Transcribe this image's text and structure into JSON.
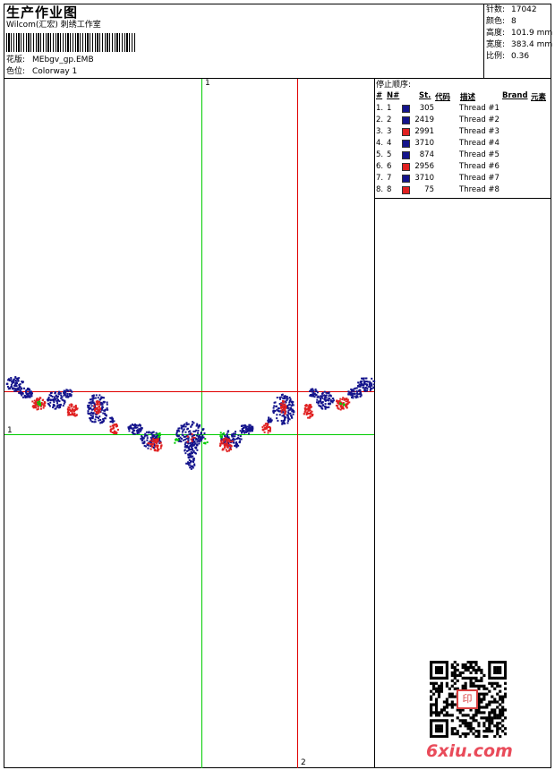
{
  "header": {
    "title": "生产作业图",
    "studio": "Wilcom(汇宏) 刺绣工作室",
    "design_label": "花版:",
    "design_value": "MEbgv_gp.EMB",
    "colorway_label": "色位:",
    "colorway_value": "Colorway 1"
  },
  "stats": [
    {
      "label": "针数:",
      "value": "17042"
    },
    {
      "label": "颜色:",
      "value": "8"
    },
    {
      "label": "高度:",
      "value": "101.9 mm"
    },
    {
      "label": "宽度:",
      "value": "383.4 mm"
    },
    {
      "label": "比例:",
      "value": "0.36"
    }
  ],
  "stop_sequence": {
    "title": "停止顺序:",
    "columns": {
      "num": "#",
      "n": "N#",
      "st": "St.",
      "code": "代码",
      "desc": "描述",
      "brand": "Brand",
      "element": "元素"
    },
    "rows": [
      {
        "num": "1.",
        "n": "1",
        "code": "305",
        "color": "#14148c",
        "desc": "Thread #1"
      },
      {
        "num": "2.",
        "n": "2",
        "code": "2419",
        "color": "#14148c",
        "desc": "Thread #2"
      },
      {
        "num": "3.",
        "n": "3",
        "code": "2991",
        "color": "#e02020",
        "desc": "Thread #3"
      },
      {
        "num": "4.",
        "n": "4",
        "code": "3710",
        "color": "#14148c",
        "desc": "Thread #4"
      },
      {
        "num": "5.",
        "n": "5",
        "code": "874",
        "color": "#14148c",
        "desc": "Thread #5"
      },
      {
        "num": "6.",
        "n": "6",
        "code": "2956",
        "color": "#e02020",
        "desc": "Thread #6"
      },
      {
        "num": "7.",
        "n": "7",
        "code": "3710",
        "color": "#14148c",
        "desc": "Thread #7"
      },
      {
        "num": "8.",
        "n": "8",
        "code": "75",
        "color": "#e02020",
        "desc": "Thread #8"
      }
    ]
  },
  "guides": {
    "green_h": "1",
    "green_v": "1",
    "red_v": "2"
  },
  "colors": {
    "blue": "#14148c",
    "red": "#e02020",
    "green": "#00cc00",
    "redline": "#e00000"
  },
  "watermark": "6xiu.com",
  "seal": "印"
}
